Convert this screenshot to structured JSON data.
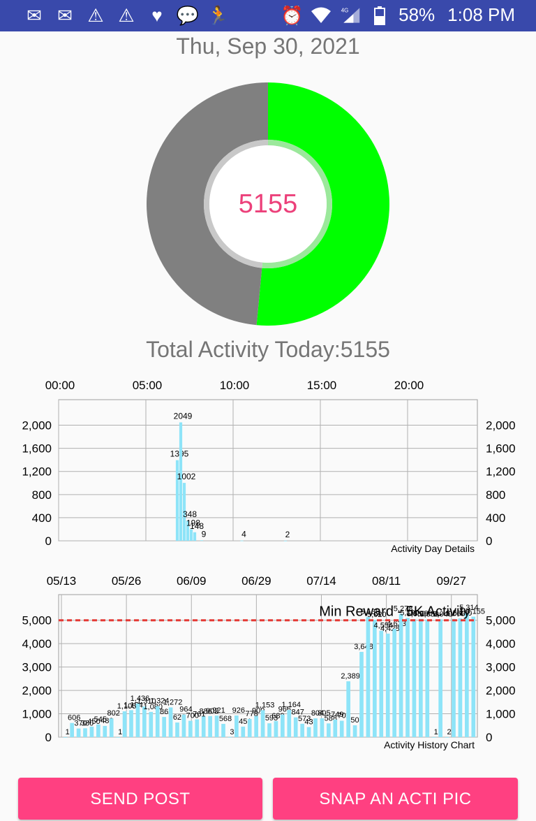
{
  "status_bar": {
    "battery": "58%",
    "time": "1:08 PM",
    "network": "4G",
    "left_icons": [
      "mail-icon",
      "mail-icon",
      "warning-icon",
      "warning-icon",
      "heart-icon",
      "chat-icon",
      "runner-icon"
    ]
  },
  "date_label": "Thu, Sep 30, 2021",
  "gauge": {
    "center_value": "5155",
    "progress_fraction": 0.515,
    "fill_color": "#00ff00",
    "rest_color": "#808080",
    "value_color": "#ec407a"
  },
  "total_label": "Total Activity Today:5155",
  "buttons": {
    "send_post": "SEND POST",
    "snap_pic": "SNAP AN ACTI PIC",
    "color": "#ff4081"
  },
  "chart_data": [
    {
      "type": "bar",
      "description_label": "Activity Day Details",
      "x_tick_labels": [
        "00:00",
        "05:00",
        "10:00",
        "15:00",
        "20:00"
      ],
      "xlim": [
        0,
        24
      ],
      "ylim": [
        0,
        2200
      ],
      "y_ticks": [
        "0",
        "400",
        "800",
        "1,200",
        "1,600",
        "2,000"
      ],
      "y_tick_values": [
        0,
        400,
        800,
        1200,
        1600,
        2000
      ],
      "bar_color": "#8ee4f8",
      "grid": true,
      "points": [
        {
          "x": 6.8,
          "y": 1395,
          "label": "1395"
        },
        {
          "x": 7.0,
          "y": 2049,
          "label": "2049"
        },
        {
          "x": 7.2,
          "y": 1002,
          "label": "1002"
        },
        {
          "x": 7.4,
          "y": 348,
          "label": "348"
        },
        {
          "x": 7.6,
          "y": 198,
          "label": "198"
        },
        {
          "x": 7.8,
          "y": 148,
          "label": "148"
        },
        {
          "x": 8.2,
          "y": 9,
          "label": "9"
        },
        {
          "x": 10.5,
          "y": 4,
          "label": "4"
        },
        {
          "x": 13.0,
          "y": 2,
          "label": "2"
        }
      ]
    },
    {
      "type": "bar",
      "description_label": "Activity History Chart",
      "x_tick_labels": [
        "05/13",
        "05/26",
        "06/09",
        "06/29",
        "07/14",
        "08/11",
        "09/27"
      ],
      "ylim": [
        0,
        5500
      ],
      "y_ticks": [
        "0",
        "1,000",
        "2,000",
        "3,000",
        "4,000",
        "5,000"
      ],
      "y_tick_values": [
        0,
        1000,
        2000,
        3000,
        4000,
        5000
      ],
      "limit_line": {
        "value": 5000,
        "label": "Min Reward - 5K Activity",
        "color": "#e53935"
      },
      "bar_color": "#8ee4f8",
      "grid": true,
      "bars": [
        {
          "y": 1,
          "label": "1"
        },
        {
          "y": 606,
          "label": "606"
        },
        {
          "y": 370,
          "label": "370"
        },
        {
          "y": 380,
          "label": "380"
        },
        {
          "y": 450,
          "label": "450"
        },
        {
          "y": 545,
          "label": "545"
        },
        {
          "y": 480,
          "label": "480"
        },
        {
          "y": 802,
          "label": "802"
        },
        {
          "y": 1,
          "label": "1"
        },
        {
          "y": 1105,
          "label": "1,105"
        },
        {
          "y": 1154,
          "label": "1,154"
        },
        {
          "y": 1436,
          "label": "1,436"
        },
        {
          "y": 1310,
          "label": "1,310"
        },
        {
          "y": 1080,
          "label": "1,080"
        },
        {
          "y": 1324,
          "label": "1,324"
        },
        {
          "y": 865,
          "label": "865"
        },
        {
          "y": 1272,
          "label": "1,272"
        },
        {
          "y": 626,
          "label": "626"
        },
        {
          "y": 964,
          "label": "964"
        },
        {
          "y": 700,
          "label": "700"
        },
        {
          "y": 761,
          "label": "761"
        },
        {
          "y": 886,
          "label": "886"
        },
        {
          "y": 902,
          "label": "902"
        },
        {
          "y": 921,
          "label": "921"
        },
        {
          "y": 568,
          "label": "568"
        },
        {
          "y": 3,
          "label": "3"
        },
        {
          "y": 926,
          "label": "926"
        },
        {
          "y": 451,
          "label": "451"
        },
        {
          "y": 778,
          "label": "778"
        },
        {
          "y": 909,
          "label": "909"
        },
        {
          "y": 1153,
          "label": "1,153"
        },
        {
          "y": 593,
          "label": "593"
        },
        {
          "y": 689,
          "label": "689"
        },
        {
          "y": 966,
          "label": "966"
        },
        {
          "y": 1164,
          "label": "1,164"
        },
        {
          "y": 847,
          "label": "847"
        },
        {
          "y": 573,
          "label": "573"
        },
        {
          "y": 431,
          "label": "431"
        },
        {
          "y": 804,
          "label": "804"
        },
        {
          "y": 805,
          "label": "805"
        },
        {
          "y": 588,
          "label": "588"
        },
        {
          "y": 749,
          "label": "749"
        },
        {
          "y": 702,
          "label": "702"
        },
        {
          "y": 2389,
          "label": "2,389"
        },
        {
          "y": 507,
          "label": "507"
        },
        {
          "y": 3648,
          "label": "3,648"
        },
        {
          "y": 5138,
          "label": "5,138"
        },
        {
          "y": 5020,
          "label": "5,020"
        },
        {
          "y": 4554,
          "label": "4,554"
        },
        {
          "y": 4428,
          "label": "4,428"
        },
        {
          "y": 4633,
          "label": "4,633"
        },
        {
          "y": 5278,
          "label": "5,278"
        },
        {
          "y": 5100,
          "label": "5,100"
        },
        {
          "y": 5050,
          "label": "5,050"
        },
        {
          "y": 5060,
          "label": "5,060"
        },
        {
          "y": 5030,
          "label": "5,030"
        },
        {
          "y": 1,
          "label": "1"
        },
        {
          "y": 5040,
          "label": "5,040"
        },
        {
          "y": 2,
          "label": "2"
        },
        {
          "y": 5060,
          "label": "5,060"
        },
        {
          "y": 5080,
          "label": "5,080"
        },
        {
          "y": 5314,
          "label": "5,314"
        },
        {
          "y": 5155,
          "label": "5,155"
        }
      ]
    }
  ]
}
